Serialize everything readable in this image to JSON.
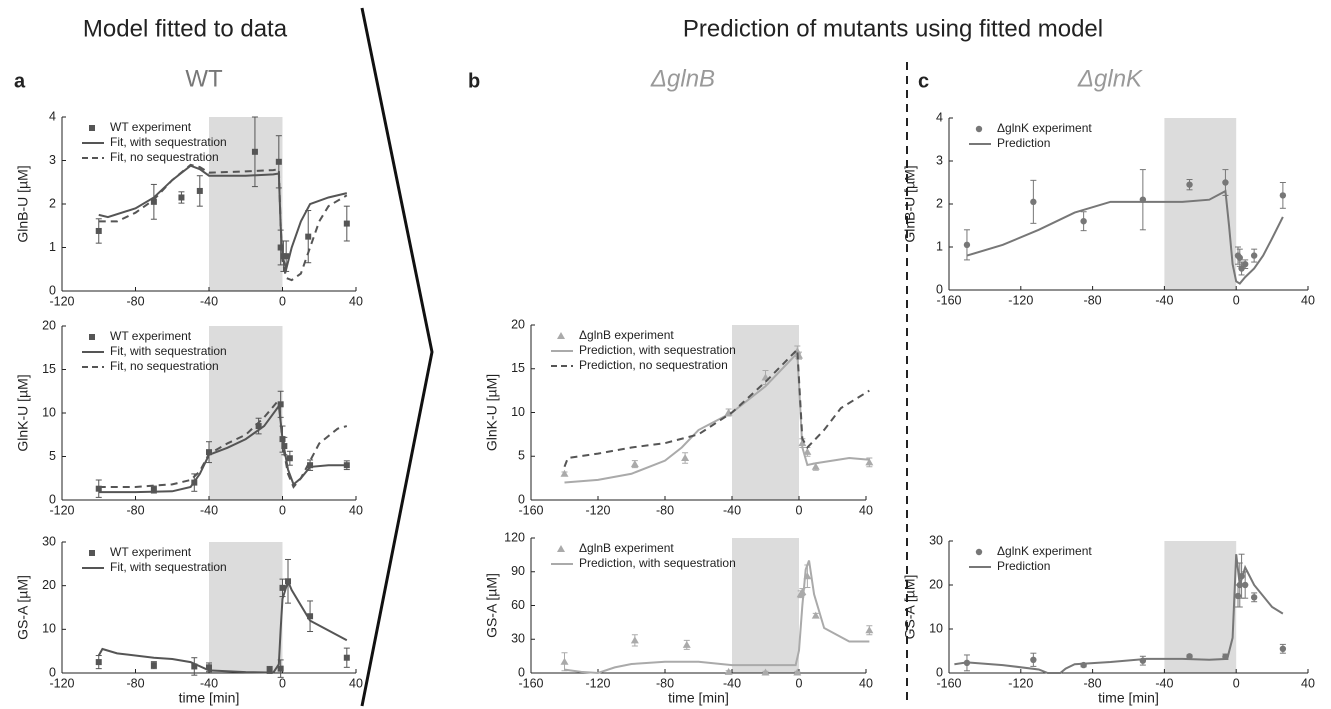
{
  "headings": {
    "left": "Model fitted to data",
    "right": "Prediction of mutants using fitted model"
  },
  "panels": [
    {
      "letter": "a",
      "title": "WT"
    },
    {
      "letter": "b",
      "title": "ΔglnB"
    },
    {
      "letter": "c",
      "title": "ΔglnK"
    }
  ],
  "chart_data": [
    {
      "type": "line",
      "ylabel": "GlnB-U [µM]",
      "xlim": [
        -120,
        40
      ],
      "xticks": [
        -120,
        -80,
        -40,
        0,
        40
      ],
      "ylim": [
        0,
        4
      ],
      "yticks": [
        0,
        1,
        2,
        3,
        4
      ],
      "shade": [
        -40,
        0
      ],
      "series": [
        {
          "name": "WT experiment",
          "color": "#555555",
          "marker": "square",
          "x": [
            -100,
            -70,
            -55,
            -45,
            -15,
            -2,
            -1,
            0.5,
            2,
            14,
            35
          ],
          "values": [
            1.38,
            2.05,
            2.15,
            2.3,
            3.2,
            2.97,
            1.0,
            0.8,
            0.8,
            1.25,
            1.55
          ],
          "errors": [
            0.28,
            0.4,
            0.13,
            0.35,
            0.8,
            0.6,
            0.4,
            0.35,
            0.35,
            0.6,
            0.4
          ]
        },
        {
          "name": "Fit, with sequestration",
          "color": "#555555",
          "line": "solid",
          "x": [
            -100,
            -95,
            -80,
            -70,
            -60,
            -50,
            -45,
            -40,
            -20,
            -5,
            -2,
            -1,
            0,
            2,
            5,
            10,
            15,
            25,
            35
          ],
          "values": [
            1.75,
            1.7,
            1.9,
            2.15,
            2.55,
            2.88,
            2.8,
            2.65,
            2.65,
            2.68,
            2.7,
            1.5,
            0.8,
            0.5,
            1.0,
            1.6,
            2.0,
            2.15,
            2.25
          ]
        },
        {
          "name": "Fit, no sequestration",
          "color": "#555555",
          "line": "dashed",
          "x": [
            -100,
            -90,
            -80,
            -70,
            -60,
            -50,
            -45,
            -40,
            -20,
            -5,
            -2,
            -1,
            0,
            2,
            5,
            10,
            15,
            20,
            25,
            35
          ],
          "values": [
            1.6,
            1.6,
            1.8,
            2.1,
            2.55,
            2.9,
            2.85,
            2.72,
            2.75,
            2.78,
            2.8,
            1.5,
            0.7,
            0.3,
            0.25,
            0.4,
            1.0,
            1.6,
            1.95,
            2.2
          ]
        }
      ]
    },
    {
      "type": "line",
      "ylabel": "GlnK-U [µM]",
      "xlim": [
        -120,
        40
      ],
      "xticks": [
        -120,
        -80,
        -40,
        0,
        40
      ],
      "ylim": [
        0,
        20
      ],
      "yticks": [
        0,
        5,
        10,
        15,
        20
      ],
      "shade": [
        -40,
        0
      ],
      "series": [
        {
          "name": "WT experiment",
          "color": "#555555",
          "marker": "square",
          "x": [
            -100,
            -70,
            -48,
            -40,
            -13,
            -1,
            0,
            1,
            4,
            15,
            35
          ],
          "values": [
            1.3,
            1.2,
            2.0,
            5.5,
            8.5,
            11,
            7,
            6.2,
            4.8,
            4,
            4
          ],
          "errors": [
            1.0,
            0.4,
            1.0,
            1.2,
            0.9,
            1.5,
            1.5,
            1,
            0.8,
            0.6,
            0.5
          ]
        },
        {
          "name": "Fit, with sequestration",
          "color": "#555555",
          "line": "solid",
          "x": [
            -100,
            -80,
            -60,
            -50,
            -45,
            -40,
            -30,
            -20,
            -10,
            -2,
            -1,
            0,
            3,
            6,
            10,
            15,
            25,
            35
          ],
          "values": [
            0.9,
            0.9,
            1.0,
            1.5,
            3,
            5.2,
            6,
            7,
            8.5,
            10.8,
            9,
            7,
            3.5,
            1.8,
            2.5,
            3.8,
            4,
            4
          ]
        },
        {
          "name": "Fit, no sequestration",
          "color": "#555555",
          "line": "dashed",
          "x": [
            -100,
            -80,
            -60,
            -50,
            -45,
            -40,
            -30,
            -20,
            -10,
            -2,
            -1,
            0,
            3,
            6,
            10,
            15,
            20,
            30,
            35
          ],
          "values": [
            1.5,
            1.5,
            1.8,
            2.3,
            3.3,
            5.3,
            6.5,
            7.5,
            9.5,
            11.5,
            9,
            6.5,
            3,
            1.5,
            2.5,
            4.5,
            6.5,
            8.2,
            8.5
          ]
        }
      ]
    },
    {
      "type": "line",
      "ylabel": "GS-A [µM]",
      "xlabel": "time [min]",
      "xlim": [
        -120,
        40
      ],
      "xticks": [
        -120,
        -80,
        -40,
        0,
        40
      ],
      "ylim": [
        0,
        30
      ],
      "yticks": [
        0,
        10,
        20,
        30
      ],
      "shade": [
        -40,
        0
      ],
      "series": [
        {
          "name": "WT experiment",
          "color": "#555555",
          "marker": "square",
          "x": [
            -100,
            -70,
            -48,
            -40,
            -7,
            -1,
            0,
            3,
            15,
            35
          ],
          "values": [
            2.5,
            1.8,
            1.5,
            1.3,
            0.7,
            1.0,
            19.5,
            21,
            13,
            3.5
          ],
          "errors": [
            1.5,
            0.8,
            2.0,
            1,
            0.8,
            2,
            2,
            5,
            3.5,
            2.2
          ]
        },
        {
          "name": "Fit, with sequestration",
          "color": "#555555",
          "line": "solid",
          "x": [
            -100,
            -98,
            -90,
            -70,
            -60,
            -50,
            -40,
            -20,
            -5,
            -2,
            -1,
            0,
            3,
            5,
            15,
            35
          ],
          "values": [
            4,
            5.5,
            4.5,
            3.5,
            3.2,
            2.5,
            0.6,
            0.2,
            0.1,
            2,
            10,
            17,
            21,
            19,
            12,
            7.5
          ]
        }
      ]
    },
    {
      "type": "line",
      "ylabel": "GlnK-U [µM]",
      "xlim": [
        -160,
        40
      ],
      "xticks": [
        -160,
        -120,
        -80,
        -40,
        0,
        40
      ],
      "ylim": [
        0,
        20
      ],
      "yticks": [
        0,
        5,
        10,
        15,
        20
      ],
      "shade": [
        -40,
        0
      ],
      "series": [
        {
          "name": "ΔglnB experiment",
          "color": "#aaaaaa",
          "marker": "triangle",
          "x": [
            -140,
            -98,
            -68,
            -42,
            -20,
            -1,
            0,
            2,
            5,
            10,
            42
          ],
          "values": [
            3,
            4.1,
            4.8,
            10,
            14,
            17,
            16.5,
            6.5,
            5.5,
            3.8,
            4.3
          ],
          "errors": [
            0.2,
            0.4,
            0.6,
            0.4,
            0.8,
            0.6,
            0.4,
            0.5,
            0.5,
            0.4,
            0.5
          ]
        },
        {
          "name": "Prediction, with sequestration",
          "color": "#aaaaaa",
          "line": "solid",
          "x": [
            -140,
            -120,
            -100,
            -80,
            -70,
            -60,
            -40,
            -20,
            -1,
            2,
            5,
            10,
            20,
            30,
            42
          ],
          "values": [
            2,
            2.3,
            3,
            4.5,
            6,
            8,
            10,
            13,
            16.8,
            6,
            4,
            4.2,
            4.5,
            4.8,
            4.6
          ]
        },
        {
          "name": "Prediction, no sequestration",
          "color": "#555555",
          "line": "dashed",
          "x": [
            -140,
            -138,
            -120,
            -100,
            -80,
            -60,
            -40,
            -20,
            -1,
            2,
            5,
            15,
            25,
            42
          ],
          "values": [
            3.8,
            4.8,
            5.3,
            6,
            6.5,
            7.5,
            10,
            13.5,
            17.2,
            7,
            6,
            8,
            10.5,
            12.5
          ]
        }
      ]
    },
    {
      "type": "line",
      "ylabel": "GS-A [µM]",
      "xlabel": "time [min]",
      "xlim": [
        -160,
        40
      ],
      "xticks": [
        -160,
        -120,
        -80,
        -40,
        0,
        40
      ],
      "ylim": [
        0,
        120
      ],
      "yticks": [
        0,
        30,
        60,
        90,
        120
      ],
      "shade": [
        -40,
        0
      ],
      "series": [
        {
          "name": "ΔglnB experiment",
          "color": "#aaaaaa",
          "marker": "triangle",
          "x": [
            -140,
            -98,
            -67,
            -42,
            -20,
            -1,
            1,
            2,
            5,
            10,
            42
          ],
          "values": [
            10,
            29,
            25,
            1,
            0.5,
            0.5,
            70,
            72,
            86,
            51,
            38
          ],
          "errors": [
            8,
            5,
            4,
            1,
            1,
            1,
            3,
            3,
            10,
            2,
            4
          ]
        },
        {
          "name": "Prediction, with sequestration",
          "color": "#aaaaaa",
          "line": "solid",
          "x": [
            -140,
            -130,
            -120,
            -110,
            -100,
            -80,
            -60,
            -40,
            -20,
            -2,
            0,
            2,
            4,
            6,
            9,
            15,
            30,
            42
          ],
          "values": [
            3,
            1,
            0,
            5,
            8,
            10,
            10,
            7,
            7,
            7,
            20,
            60,
            92,
            100,
            70,
            40,
            28,
            28
          ]
        }
      ]
    },
    {
      "type": "line",
      "ylabel": "GlnB-U [µM]",
      "xlim": [
        -160,
        40
      ],
      "xticks": [
        -160,
        -120,
        -80,
        -40,
        0,
        40
      ],
      "ylim": [
        0,
        4
      ],
      "yticks": [
        0,
        1,
        2,
        3,
        4
      ],
      "shade": [
        -40,
        0
      ],
      "series": [
        {
          "name": "ΔglnK experiment",
          "color": "#777777",
          "marker": "circle",
          "x": [
            -150,
            -113,
            -85,
            -52,
            -26,
            -6,
            1,
            2,
            3,
            5,
            10,
            26
          ],
          "values": [
            1.05,
            2.05,
            1.6,
            2.1,
            2.45,
            2.5,
            0.8,
            0.75,
            0.5,
            0.6,
            0.8,
            2.2
          ],
          "errors": [
            0.35,
            0.5,
            0.22,
            0.7,
            0.12,
            0.3,
            0.2,
            0.2,
            0.15,
            0.1,
            0.15,
            0.3
          ]
        },
        {
          "name": "Prediction",
          "color": "#777777",
          "line": "solid",
          "x": [
            -150,
            -130,
            -110,
            -90,
            -70,
            -50,
            -30,
            -15,
            -6,
            -4,
            -2,
            0,
            2,
            5,
            10,
            15,
            20,
            26
          ],
          "values": [
            0.8,
            1.05,
            1.4,
            1.8,
            2.05,
            2.05,
            2.05,
            2.1,
            2.3,
            1.5,
            0.6,
            0.2,
            0.15,
            0.3,
            0.5,
            0.8,
            1.2,
            1.7
          ]
        }
      ]
    },
    {
      "type": "line",
      "ylabel": "GS-A [µM]",
      "xlabel": "time [min]",
      "xlim": [
        -160,
        40
      ],
      "xticks": [
        -160,
        -120,
        -80,
        -40,
        0,
        40
      ],
      "ylim": [
        0,
        30
      ],
      "yticks": [
        0,
        10,
        20,
        30
      ],
      "shade": [
        -40,
        0
      ],
      "series": [
        {
          "name": "ΔglnK experiment",
          "color": "#777777",
          "marker": "circle",
          "x": [
            -150,
            -113,
            -85,
            -52,
            -26,
            -6,
            1,
            2,
            3,
            5,
            10,
            26
          ],
          "values": [
            2.3,
            3,
            1.8,
            2.8,
            3.8,
            3.7,
            17.5,
            20,
            22,
            20,
            17.2,
            5.5
          ],
          "errors": [
            1.8,
            1.5,
            0.4,
            1,
            0.3,
            0.6,
            2.5,
            5,
            5,
            3,
            1,
            1
          ]
        },
        {
          "name": "Prediction",
          "color": "#777777",
          "line": "solid",
          "x": [
            -157,
            -150,
            -130,
            -110,
            -105,
            -98,
            -95,
            -90,
            -70,
            -50,
            -30,
            -15,
            -5,
            -2,
            0,
            2,
            5,
            10,
            20,
            26
          ],
          "values": [
            2,
            2.4,
            1.8,
            0.8,
            0,
            0,
            1,
            2,
            2.5,
            3.2,
            3.2,
            3,
            3.2,
            8,
            27,
            20,
            24,
            20,
            15,
            13.5
          ]
        }
      ]
    }
  ]
}
